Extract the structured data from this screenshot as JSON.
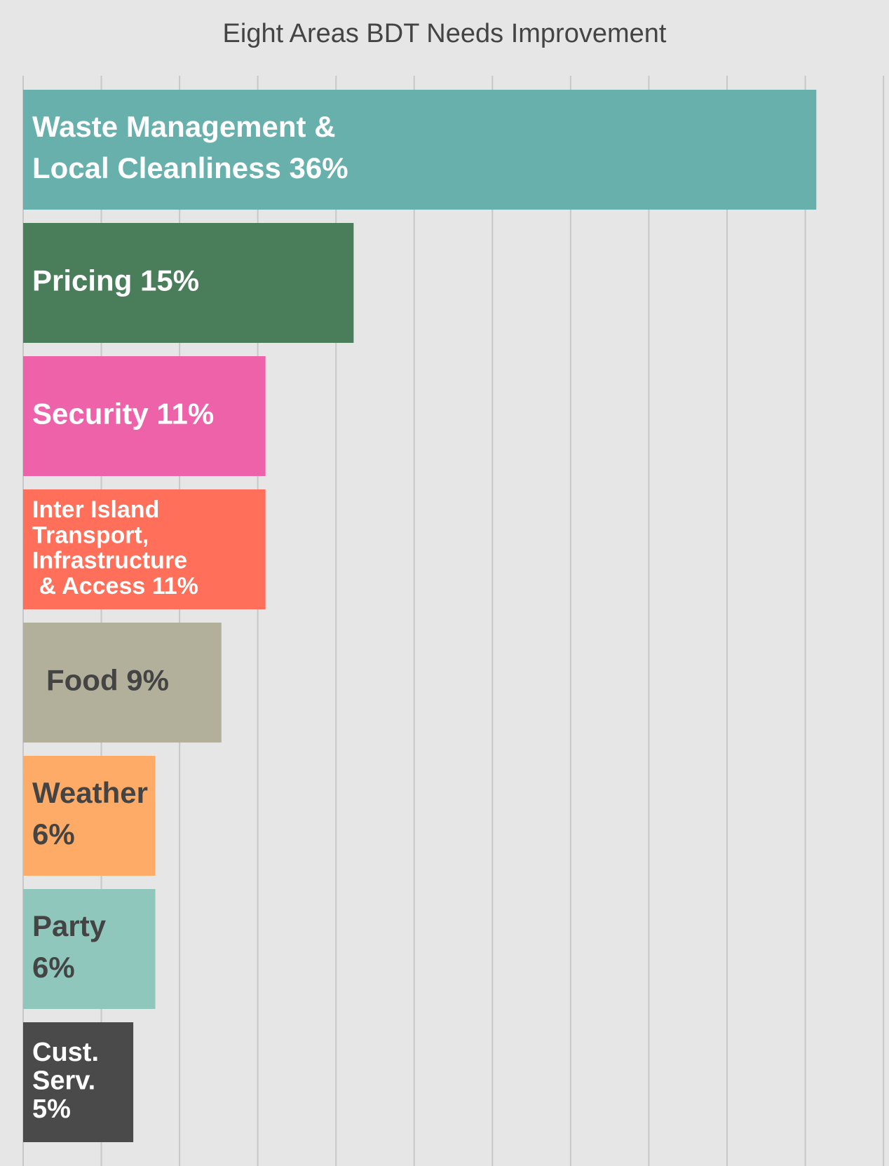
{
  "chart_data": {
    "type": "barh",
    "title": "Eight Areas BDT Needs Improvement",
    "values": [
      36,
      15,
      11,
      11,
      9,
      6,
      6,
      5
    ],
    "value_labels": [
      [
        "Waste Management &",
        "Local Cleanliness 36%"
      ],
      [
        "Pricing 15%"
      ],
      [
        "Security 11%"
      ],
      [
        "Inter Island",
        "Transport,",
        "Infrastructure",
        " & Access 11%"
      ],
      [
        "Food 9%"
      ],
      [
        "Weather",
        "6%"
      ],
      [
        "Party",
        "6%"
      ],
      [
        "Cust.",
        "Serv.",
        "5%"
      ]
    ],
    "colors": [
      "#67b0ac",
      "#4a7d59",
      "#ee62a9",
      "#ff6f59",
      "#b2af9a",
      "#fdab66",
      "#8fc7bd",
      "#4a4a4a"
    ],
    "label_colors": [
      "#ffffff",
      "#ffffff",
      "#ffffff",
      "#ffffff",
      "#444444",
      "#444444",
      "#444444",
      "#ffffff"
    ],
    "xlim": [
      0,
      39.3
    ],
    "xticks": [
      0,
      3.55,
      7.1,
      10.65,
      14.2,
      17.75,
      21.3,
      24.85,
      28.4,
      31.95,
      35.5,
      39.05
    ],
    "grid": true
  }
}
